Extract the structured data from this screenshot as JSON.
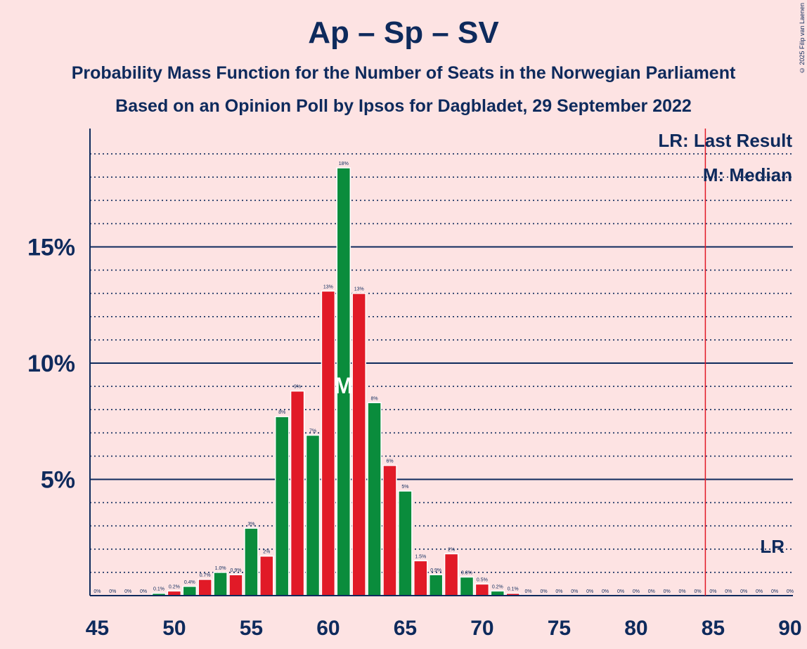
{
  "title": "Ap – Sp – SV",
  "subtitle1": "Probability Mass Function for the Number of Seats in the Norwegian Parliament",
  "subtitle2": "Based on an Opinion Poll by Ipsos for Dagbladet, 29 September 2022",
  "copyright": "© 2025 Filip van Laenen",
  "legend": {
    "lr": "LR: Last Result",
    "m": "M: Median"
  },
  "markers": {
    "median_label": "M",
    "lr_label": "LR",
    "median_seat": 61,
    "last_result_seat": 85
  },
  "colors": {
    "red": "#e11a27",
    "green": "#0a8c3c",
    "background": "#fde3e3",
    "text": "#0e2a5c",
    "lr_line": "#e11a27"
  },
  "chart_data": {
    "type": "bar",
    "x": [
      45,
      46,
      47,
      48,
      49,
      50,
      51,
      52,
      53,
      54,
      55,
      56,
      57,
      58,
      59,
      60,
      61,
      62,
      63,
      64,
      65,
      66,
      67,
      68,
      69,
      70,
      71,
      72,
      73,
      74,
      75,
      76,
      77,
      78,
      79,
      80,
      81,
      82,
      83,
      84,
      85,
      86,
      87,
      88,
      89,
      90
    ],
    "values": [
      0,
      0,
      0,
      0,
      0.1,
      0.2,
      0.4,
      0.7,
      1.0,
      0.9,
      2.9,
      1.7,
      7.7,
      8.8,
      6.9,
      13.1,
      18.4,
      13.0,
      8.3,
      5.6,
      4.5,
      1.5,
      0.9,
      1.8,
      0.8,
      0.5,
      0.2,
      0.1,
      0,
      0,
      0,
      0,
      0,
      0,
      0,
      0,
      0,
      0,
      0,
      0,
      0,
      0,
      0,
      0,
      0,
      0
    ],
    "labels": [
      "0%",
      "0%",
      "0%",
      "0%",
      "0.1%",
      "0.2%",
      "0.4%",
      "0.7%",
      "1.0%",
      "0.9%",
      "3%",
      "2%",
      "8%",
      "9%",
      "7%",
      "13%",
      "18%",
      "13%",
      "8%",
      "6%",
      "5%",
      "1.5%",
      "0.9%",
      "2%",
      "0.8%",
      "0.5%",
      "0.2%",
      "0.1%",
      "0%",
      "0%",
      "0%",
      "0%",
      "0%",
      "0%",
      "0%",
      "0%",
      "0%",
      "0%",
      "0%",
      "0%",
      "0%",
      "0%",
      "0%",
      "0%",
      "0%",
      "0%"
    ],
    "xlim": [
      45,
      90
    ],
    "ylim": [
      0,
      20
    ],
    "xticks": [
      "45",
      "50",
      "55",
      "60",
      "65",
      "70",
      "75",
      "80",
      "85",
      "90"
    ],
    "yticks": [
      "5%",
      "10%",
      "15%"
    ],
    "grid": true
  }
}
